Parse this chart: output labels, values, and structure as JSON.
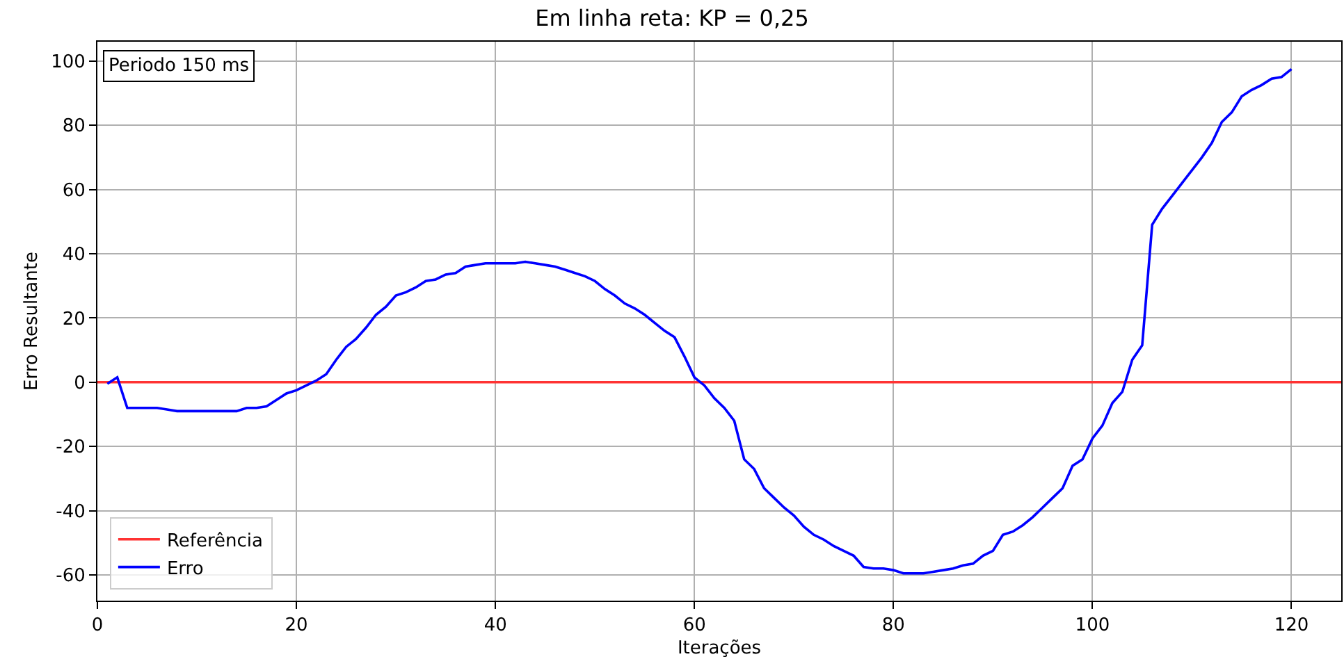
{
  "chart_data": {
    "type": "line",
    "title": "Em linha reta: KP = 0,25",
    "xlabel": "Iterações",
    "ylabel": "Erro Resultante",
    "annotations": [
      "Periodo 150 ms"
    ],
    "xlim": [
      0,
      125
    ],
    "ylim": [
      -68,
      106
    ],
    "xticks": [
      0,
      20,
      40,
      60,
      80,
      100,
      120
    ],
    "yticks": [
      -60,
      -40,
      -20,
      0,
      20,
      40,
      60,
      80,
      100
    ],
    "grid": true,
    "legend": "bottom left",
    "line_style": "solid",
    "series": [
      {
        "name": "Referência",
        "color": "#ff3333",
        "x": [
          0,
          125
        ],
        "values": [
          0,
          0
        ]
      },
      {
        "name": "Erro",
        "color": "#0000ff",
        "x": [
          1,
          2,
          3,
          4,
          5,
          6,
          7,
          8,
          9,
          10,
          11,
          12,
          13,
          14,
          15,
          16,
          17,
          18,
          19,
          20,
          21,
          22,
          23,
          24,
          25,
          26,
          27,
          28,
          29,
          30,
          31,
          32,
          33,
          34,
          35,
          36,
          37,
          38,
          39,
          40,
          41,
          42,
          43,
          44,
          45,
          46,
          47,
          48,
          49,
          50,
          51,
          52,
          53,
          54,
          55,
          56,
          57,
          58,
          59,
          60,
          61,
          62,
          63,
          64,
          65,
          66,
          67,
          68,
          69,
          70,
          71,
          72,
          73,
          74,
          75,
          76,
          77,
          78,
          79,
          80,
          81,
          82,
          83,
          84,
          85,
          86,
          87,
          88,
          89,
          90,
          91,
          92,
          93,
          94,
          95,
          96,
          97,
          98,
          99,
          100,
          101,
          102,
          103,
          104,
          105,
          106,
          107,
          108,
          109,
          110,
          111,
          112,
          113,
          114,
          115,
          116,
          117,
          118,
          119,
          120
        ],
        "values": [
          -0.5,
          1.5,
          -8,
          -8,
          -8,
          -8,
          -8.5,
          -9,
          -9,
          -9,
          -9,
          -9,
          -9,
          -9,
          -8,
          -8,
          -7.5,
          -5.5,
          -3.5,
          -2.5,
          -1,
          0.5,
          2.5,
          7,
          11,
          13.5,
          17,
          21,
          23.5,
          27,
          28,
          29.5,
          31.5,
          32,
          33.5,
          34,
          36,
          36.5,
          37,
          37,
          37,
          37,
          37.5,
          37,
          36.5,
          36,
          35,
          34,
          33,
          31.5,
          29,
          27,
          24.5,
          23,
          21,
          18.5,
          16,
          14,
          8,
          1.5,
          -1,
          -5,
          -8,
          -12,
          -24,
          -27,
          -33,
          -36,
          -39,
          -41.5,
          -45,
          -47.5,
          -49,
          -51,
          -52.5,
          -54,
          -57.5,
          -58,
          -58,
          -58.5,
          -59.5,
          -59.5,
          -59.5,
          -59,
          -58.5,
          -58,
          -57,
          -56.5,
          -54,
          -52.5,
          -47.5,
          -46.5,
          -44.5,
          -42,
          -39,
          -36,
          -33,
          -26,
          -24,
          -17.5,
          -13.5,
          -6.5,
          -3,
          7,
          11.5,
          49,
          54,
          58,
          62,
          66,
          70,
          74.5,
          81,
          84,
          89,
          91,
          92.5,
          94.5,
          95,
          97.5
        ]
      }
    ]
  }
}
